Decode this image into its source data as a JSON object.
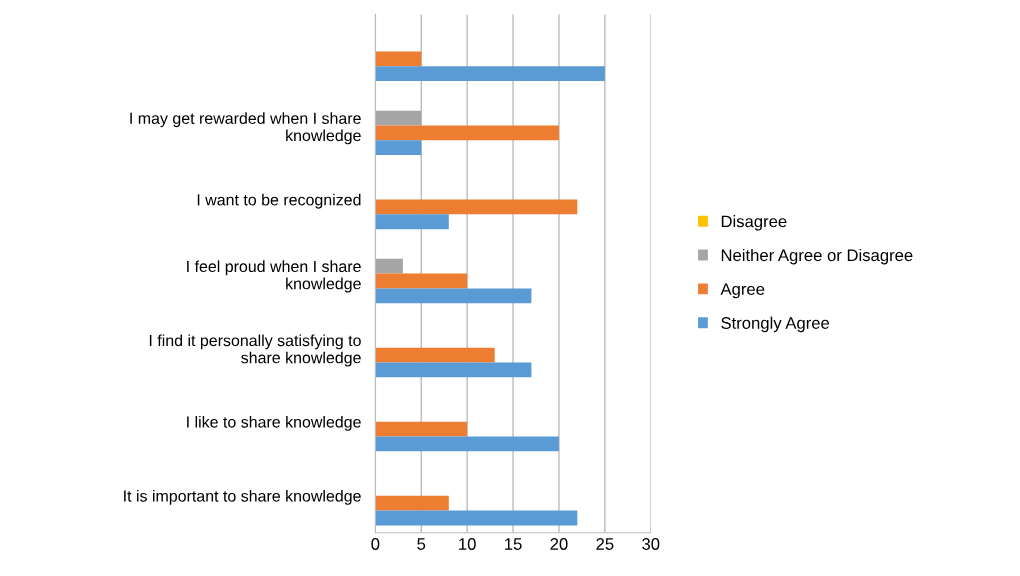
{
  "chart_data": {
    "type": "bar",
    "orientation": "horizontal",
    "categories": [
      null,
      "I may get rewarded when I share knowledge",
      "I want to be recognized",
      "I feel proud when I share knowledge",
      "I find it personally satisfying to share knowledge",
      "I like to share knowledge",
      "It is important to share knowledge"
    ],
    "series": [
      {
        "name": "Disagree",
        "color": "#ffc000",
        "values": [
          0,
          0,
          0,
          0,
          0,
          0,
          0
        ]
      },
      {
        "name": "Neither Agree or Disagree",
        "color": "#a5a5a5",
        "values": [
          0,
          5,
          0,
          3,
          0,
          0,
          0
        ]
      },
      {
        "name": "Agree",
        "color": "#ed7d31",
        "values": [
          5,
          20,
          22,
          10,
          13,
          10,
          8
        ]
      },
      {
        "name": "Strongly Agree",
        "color": "#5b9bd5",
        "values": [
          25,
          5,
          8,
          17,
          17,
          20,
          22
        ]
      }
    ],
    "xlim": [
      0,
      30
    ],
    "xticks": [
      0,
      5,
      10,
      15,
      20,
      25,
      30
    ],
    "grid": "x",
    "legend": "right"
  }
}
